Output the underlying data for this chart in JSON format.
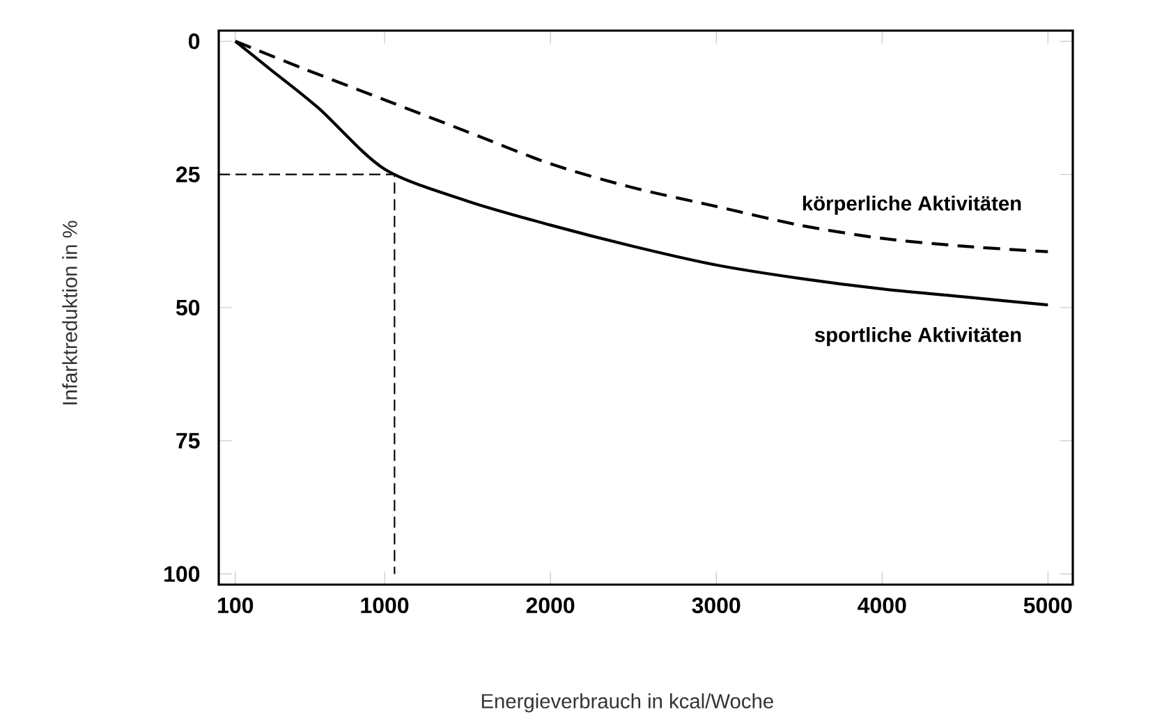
{
  "chart_data": {
    "type": "line",
    "xlabel": "Energieverbrauch in kcal/Woche",
    "ylabel": "Infarktreduktion in %",
    "xlim": [
      0,
      5150
    ],
    "ylim": [
      102,
      -2
    ],
    "xticks": [
      100,
      1000,
      2000,
      3000,
      4000,
      5000
    ],
    "yticks": [
      0,
      25,
      50,
      75,
      100
    ],
    "legend": false,
    "grid": false,
    "series": [
      {
        "name": "körperliche Aktivitäten",
        "color": "#000000",
        "line_style": "dashed",
        "x": [
          100,
          500,
          1000,
          1500,
          2000,
          2500,
          3000,
          3500,
          4000,
          4500,
          5000
        ],
        "values": [
          0,
          5,
          11,
          17,
          23,
          27.5,
          31,
          34.5,
          37,
          38.5,
          39.5
        ]
      },
      {
        "name": "sportliche Aktivitäten",
        "color": "#000000",
        "line_style": "solid",
        "x": [
          100,
          300,
          600,
          1000,
          1500,
          2000,
          2500,
          3000,
          3500,
          4000,
          4500,
          5000
        ],
        "values": [
          0,
          5,
          12.5,
          24,
          30,
          34.5,
          38.5,
          42,
          44.5,
          46.5,
          48,
          49.5
        ]
      },
      {
        "color": "#000000",
        "line_style": "dashed",
        "x": [
          0,
          1060,
          1060
        ],
        "values": [
          25,
          25,
          100
        ]
      }
    ]
  }
}
